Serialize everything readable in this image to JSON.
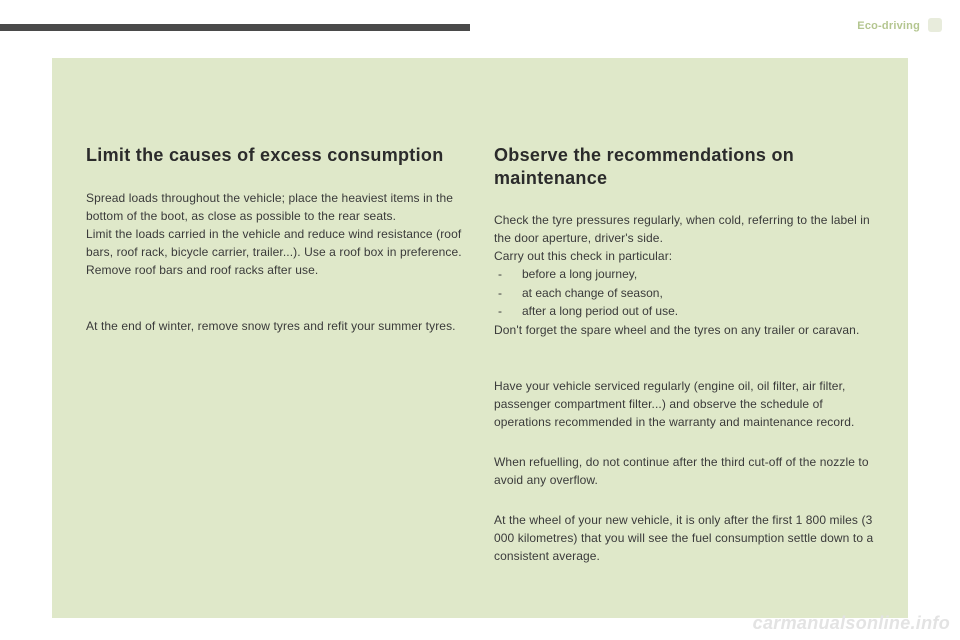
{
  "header": {
    "section_label": "Eco-driving"
  },
  "left": {
    "title": "Limit the causes of excess consumption",
    "p1": "Spread loads throughout the vehicle; place the heaviest items in the bottom of the boot, as close as possible to the rear seats.",
    "p2": "Limit the loads carried in the vehicle and reduce wind resistance (roof bars, roof rack, bicycle carrier, trailer...). Use a roof box in preference.",
    "p3": "Remove roof bars and roof racks after use.",
    "p4": "At the end of winter, remove snow tyres and refit your summer tyres."
  },
  "right": {
    "title": "Observe the recommendations on maintenance",
    "p1": "Check the tyre pressures regularly, when cold, referring to the label in the door aperture, driver's side.",
    "p2": "Carry out this check in particular:",
    "list": {
      "i1": "before a long journey,",
      "i2": "at each change of season,",
      "i3": "after a long period out of use."
    },
    "p3": "Don't forget the spare wheel and the tyres on any trailer or caravan.",
    "p4": "Have your vehicle serviced regularly (engine oil, oil filter, air filter, passenger compartment filter...) and observe the schedule of operations recommended in the warranty and maintenance record.",
    "p5": "When refuelling, do not continue after the third cut-off of the nozzle to avoid any overflow.",
    "p6": "At the wheel of your new vehicle, it is only after the first 1 800 miles (3 000 kilometres) that you will see the fuel consumption settle down to a consistent average."
  },
  "footer": {
    "watermark": "carmanualsonline.info"
  },
  "colors": {
    "panel_bg": "#dfe8c9",
    "page_bg": "#ffffff",
    "topbar": "#4a4a4a",
    "text": "#3a3a3a",
    "heading": "#2b2b2b",
    "header_label": "#b4c690",
    "watermark": "#e3e3e3"
  }
}
